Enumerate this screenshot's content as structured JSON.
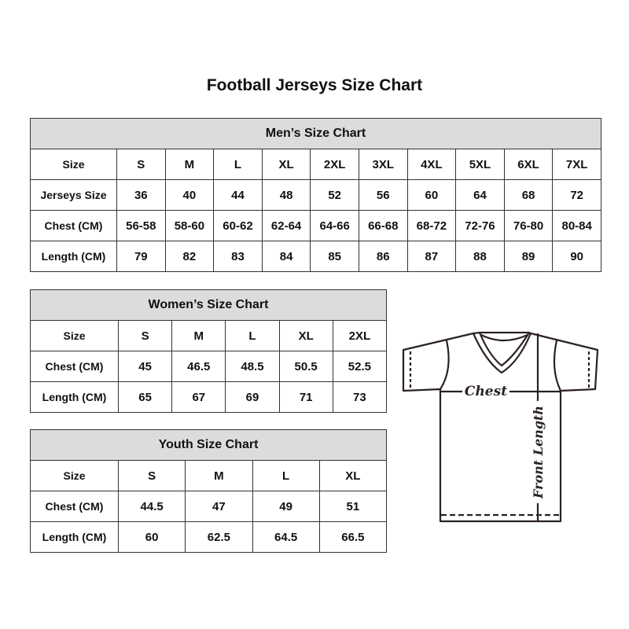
{
  "title": "Football Jerseys Size Chart",
  "men": {
    "caption": "Men’s Size Chart",
    "rows": [
      [
        "Size",
        "S",
        "M",
        "L",
        "XL",
        "2XL",
        "3XL",
        "4XL",
        "5XL",
        "6XL",
        "7XL"
      ],
      [
        "Jerseys Size",
        "36",
        "40",
        "44",
        "48",
        "52",
        "56",
        "60",
        "64",
        "68",
        "72"
      ],
      [
        "Chest (CM)",
        "56-58",
        "58-60",
        "60-62",
        "62-64",
        "64-66",
        "66-68",
        "68-72",
        "72-76",
        "76-80",
        "80-84"
      ],
      [
        "Length (CM)",
        "79",
        "82",
        "83",
        "84",
        "85",
        "86",
        "87",
        "88",
        "89",
        "90"
      ]
    ]
  },
  "women": {
    "caption": "Women’s Size Chart",
    "rows": [
      [
        "Size",
        "S",
        "M",
        "L",
        "XL",
        "2XL"
      ],
      [
        "Chest (CM)",
        "45",
        "46.5",
        "48.5",
        "50.5",
        "52.5"
      ],
      [
        "Length (CM)",
        "65",
        "67",
        "69",
        "71",
        "73"
      ]
    ]
  },
  "youth": {
    "caption": "Youth Size Chart",
    "rows": [
      [
        "Size",
        "S",
        "M",
        "L",
        "XL"
      ],
      [
        "Chest (CM)",
        "44.5",
        "47",
        "49",
        "51"
      ],
      [
        "Length (CM)",
        "60",
        "62.5",
        "64.5",
        "66.5"
      ]
    ]
  },
  "diagram": {
    "chest_label": "Chest",
    "length_label": "Front Length"
  },
  "colors": {
    "header_bg": "#dcdcdc",
    "border": "#333333",
    "shirt_line": "#2a2220"
  }
}
